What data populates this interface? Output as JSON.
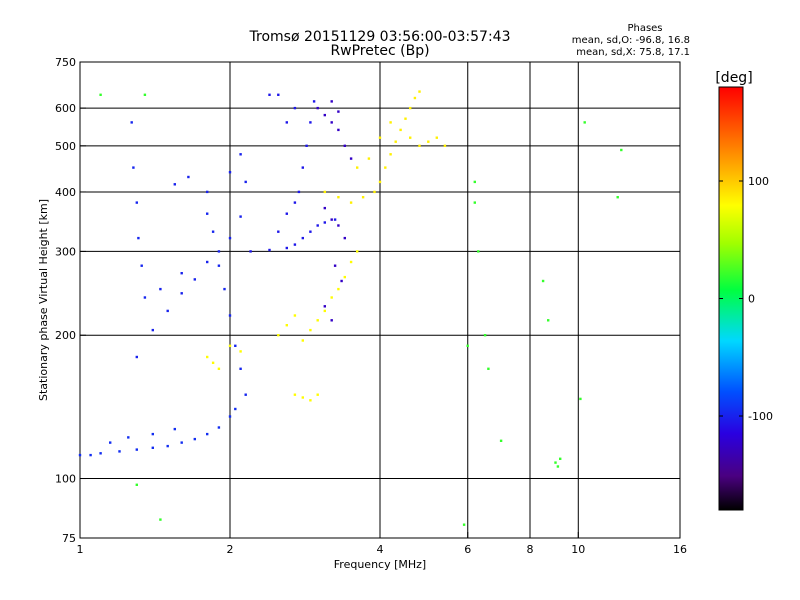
{
  "chart_data": {
    "type": "scatter",
    "title": "Tromsø 20151129 03:56:00-03:57:43",
    "subtitle": "RwPretec (Bp)",
    "xlabel": "Frequency [MHz]",
    "ylabel": "Stationary phase Virtual Height [km]",
    "x_scale": "log",
    "y_scale": "log",
    "xlim": [
      1,
      16
    ],
    "ylim": [
      75,
      750
    ],
    "grid": true,
    "x_ticks": [
      1,
      2,
      4,
      6,
      8,
      10,
      16
    ],
    "x_tick_labels": [
      "1",
      "2",
      "4",
      "6",
      "8",
      "10",
      "16"
    ],
    "x_gridlines": [
      2,
      4,
      6,
      8,
      10
    ],
    "y_ticks": [
      75,
      100,
      200,
      300,
      400,
      500,
      600,
      750
    ],
    "y_tick_labels": [
      "75",
      "100",
      "200",
      "300",
      "400",
      "500",
      "600",
      "750"
    ],
    "y_gridlines": [
      100,
      200,
      300,
      400,
      500,
      600
    ],
    "stats": {
      "header": "Phases",
      "line_o": "mean, sd,O: -96.8, 16.8",
      "line_x": "mean, sd,X:  75.8, 17.1"
    },
    "colorbar": {
      "label": "[deg]",
      "range": [
        -180,
        180
      ],
      "ticks": [
        100,
        0,
        -100
      ],
      "tick_labels": [
        "100",
        "0",
        "-100"
      ],
      "colormap": "rainbow"
    },
    "series": [
      {
        "trace": "o-E-low",
        "phase": -95,
        "points": [
          [
            1.0,
            112
          ],
          [
            1.05,
            112
          ],
          [
            1.1,
            113
          ],
          [
            1.2,
            114
          ],
          [
            1.3,
            115
          ],
          [
            1.4,
            116
          ],
          [
            1.5,
            117
          ],
          [
            1.6,
            119
          ],
          [
            1.7,
            121
          ],
          [
            1.8,
            124
          ],
          [
            1.9,
            128
          ],
          [
            2.0,
            135
          ],
          [
            2.05,
            140
          ],
          [
            1.25,
            122
          ],
          [
            1.4,
            124
          ],
          [
            1.55,
            127
          ],
          [
            1.15,
            119
          ]
        ]
      },
      {
        "trace": "o-E-high",
        "phase": -100,
        "points": [
          [
            1.3,
            180
          ],
          [
            1.4,
            205
          ],
          [
            1.5,
            225
          ],
          [
            1.6,
            245
          ],
          [
            1.7,
            262
          ],
          [
            1.8,
            285
          ],
          [
            1.9,
            300
          ],
          [
            2.0,
            320
          ],
          [
            2.1,
            355
          ],
          [
            1.45,
            250
          ],
          [
            1.6,
            270
          ],
          [
            1.55,
            415
          ],
          [
            1.65,
            430
          ],
          [
            1.8,
            400
          ],
          [
            2.0,
            440
          ],
          [
            2.15,
            420
          ],
          [
            2.1,
            480
          ]
        ]
      },
      {
        "trace": "o-F",
        "phase": -105,
        "points": [
          [
            2.2,
            300
          ],
          [
            2.4,
            302
          ],
          [
            2.6,
            305
          ],
          [
            2.7,
            310
          ],
          [
            2.8,
            320
          ],
          [
            2.9,
            330
          ],
          [
            3.0,
            340
          ],
          [
            3.1,
            345
          ],
          [
            3.25,
            350
          ],
          [
            2.5,
            330
          ],
          [
            2.6,
            360
          ],
          [
            2.7,
            380
          ],
          [
            2.75,
            400
          ],
          [
            2.8,
            450
          ],
          [
            2.85,
            500
          ],
          [
            2.9,
            560
          ],
          [
            2.95,
            620
          ],
          [
            2.5,
            640
          ],
          [
            2.4,
            640
          ],
          [
            2.7,
            600
          ],
          [
            2.6,
            560
          ]
        ]
      },
      {
        "trace": "o-spread",
        "phase": -125,
        "points": [
          [
            3.0,
            600
          ],
          [
            3.1,
            580
          ],
          [
            3.2,
            560
          ],
          [
            3.3,
            540
          ],
          [
            3.4,
            500
          ],
          [
            3.5,
            470
          ],
          [
            3.2,
            620
          ],
          [
            3.3,
            590
          ],
          [
            3.1,
            370
          ],
          [
            3.2,
            350
          ],
          [
            3.3,
            340
          ],
          [
            3.4,
            320
          ],
          [
            3.25,
            280
          ],
          [
            3.35,
            260
          ],
          [
            3.1,
            230
          ],
          [
            3.2,
            215
          ]
        ]
      },
      {
        "trace": "o-verticals",
        "phase": -98,
        "points": [
          [
            1.27,
            560
          ],
          [
            1.28,
            450
          ],
          [
            1.3,
            380
          ],
          [
            1.31,
            320
          ],
          [
            1.33,
            280
          ],
          [
            1.35,
            240
          ],
          [
            1.8,
            360
          ],
          [
            1.85,
            330
          ],
          [
            1.9,
            280
          ],
          [
            1.95,
            250
          ],
          [
            2.0,
            220
          ],
          [
            2.05,
            190
          ],
          [
            2.1,
            170
          ],
          [
            2.15,
            150
          ]
        ]
      },
      {
        "trace": "x-E",
        "phase": 80,
        "points": [
          [
            1.8,
            180
          ],
          [
            1.85,
            175
          ],
          [
            1.9,
            170
          ],
          [
            2.0,
            190
          ],
          [
            2.1,
            185
          ],
          [
            2.5,
            200
          ],
          [
            2.6,
            210
          ],
          [
            2.7,
            220
          ],
          [
            2.8,
            195
          ],
          [
            2.9,
            205
          ],
          [
            3.0,
            215
          ],
          [
            3.1,
            225
          ],
          [
            3.2,
            240
          ],
          [
            3.3,
            250
          ],
          [
            3.4,
            265
          ],
          [
            3.5,
            285
          ],
          [
            3.6,
            300
          ],
          [
            2.7,
            150
          ],
          [
            2.8,
            148
          ],
          [
            2.9,
            146
          ],
          [
            3.0,
            150
          ]
        ]
      },
      {
        "trace": "x-F",
        "phase": 85,
        "points": [
          [
            3.1,
            400
          ],
          [
            3.3,
            390
          ],
          [
            3.5,
            380
          ],
          [
            3.7,
            390
          ],
          [
            3.9,
            400
          ],
          [
            4.0,
            420
          ],
          [
            4.1,
            450
          ],
          [
            4.2,
            480
          ],
          [
            4.3,
            510
          ],
          [
            4.4,
            540
          ],
          [
            4.5,
            570
          ],
          [
            4.6,
            600
          ],
          [
            4.7,
            630
          ],
          [
            4.8,
            650
          ],
          [
            3.6,
            450
          ],
          [
            3.8,
            470
          ],
          [
            4.0,
            520
          ],
          [
            4.2,
            560
          ],
          [
            4.6,
            520
          ],
          [
            4.8,
            500
          ],
          [
            5.0,
            510
          ],
          [
            5.2,
            520
          ],
          [
            5.4,
            500
          ]
        ]
      },
      {
        "trace": "scattered",
        "phase": 20,
        "points": [
          [
            6.2,
            420
          ],
          [
            6.2,
            380
          ],
          [
            6.3,
            300
          ],
          [
            6.5,
            200
          ],
          [
            6.6,
            170
          ],
          [
            7.0,
            120
          ],
          [
            8.5,
            260
          ],
          [
            8.7,
            215
          ],
          [
            9.0,
            108
          ],
          [
            9.1,
            106
          ],
          [
            9.2,
            110
          ],
          [
            10.3,
            560
          ],
          [
            10.1,
            147
          ],
          [
            12.0,
            390
          ],
          [
            12.2,
            490
          ],
          [
            5.9,
            80
          ],
          [
            6.0,
            190
          ],
          [
            1.1,
            640
          ],
          [
            1.35,
            640
          ],
          [
            1.3,
            97
          ],
          [
            1.45,
            82
          ]
        ]
      }
    ]
  }
}
